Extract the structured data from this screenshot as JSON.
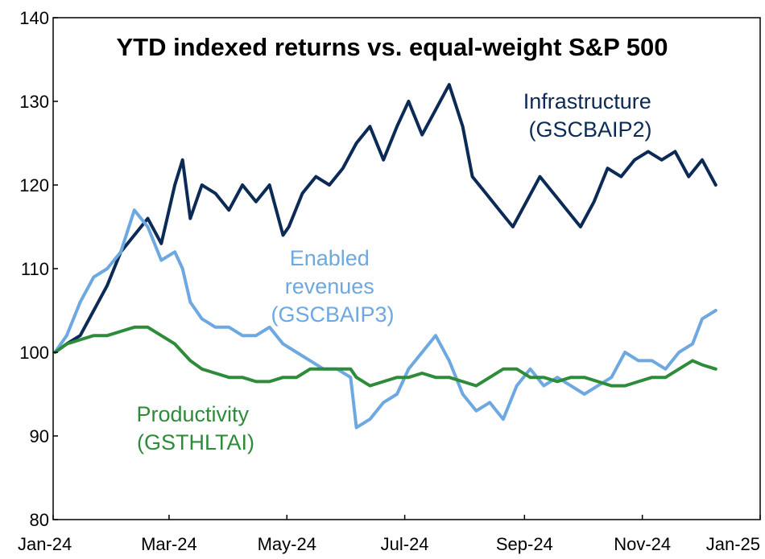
{
  "chart_data": {
    "type": "line",
    "title": "YTD indexed returns vs. equal-weight S&P 500",
    "xlabel": "",
    "ylabel": "",
    "xlim": [
      "2024-01-01",
      "2025-01-01"
    ],
    "ylim": [
      80,
      140
    ],
    "x_ticks": [
      "Jan-24",
      "Mar-24",
      "May-24",
      "Jul-24",
      "Sep-24",
      "Nov-24",
      "Jan-25"
    ],
    "y_ticks": [
      80,
      90,
      100,
      110,
      120,
      130,
      140
    ],
    "grid": false,
    "legend": "none",
    "series": [
      {
        "name": "Infrastructure (GSCBAIP2)",
        "label_lines": [
          "Infrastructure",
          "(GSCBAIP2)"
        ],
        "color": "#0b2a55",
        "points": [
          [
            "2024-01-02",
            100
          ],
          [
            "2024-01-08",
            101
          ],
          [
            "2024-01-15",
            102
          ],
          [
            "2024-01-22",
            105
          ],
          [
            "2024-01-29",
            108
          ],
          [
            "2024-02-05",
            112
          ],
          [
            "2024-02-12",
            114
          ],
          [
            "2024-02-19",
            116
          ],
          [
            "2024-02-26",
            113
          ],
          [
            "2024-03-04",
            120
          ],
          [
            "2024-03-08",
            123
          ],
          [
            "2024-03-12",
            116
          ],
          [
            "2024-03-18",
            120
          ],
          [
            "2024-03-25",
            119
          ],
          [
            "2024-04-01",
            117
          ],
          [
            "2024-04-08",
            120
          ],
          [
            "2024-04-15",
            118
          ],
          [
            "2024-04-22",
            120
          ],
          [
            "2024-04-29",
            114
          ],
          [
            "2024-05-02",
            115
          ],
          [
            "2024-05-09",
            119
          ],
          [
            "2024-05-16",
            121
          ],
          [
            "2024-05-23",
            120
          ],
          [
            "2024-05-30",
            122
          ],
          [
            "2024-06-06",
            125
          ],
          [
            "2024-06-13",
            127
          ],
          [
            "2024-06-20",
            123
          ],
          [
            "2024-06-27",
            127
          ],
          [
            "2024-07-03",
            130
          ],
          [
            "2024-07-10",
            126
          ],
          [
            "2024-07-17",
            129
          ],
          [
            "2024-07-24",
            132
          ],
          [
            "2024-07-31",
            127
          ],
          [
            "2024-08-05",
            121
          ],
          [
            "2024-08-12",
            119
          ],
          [
            "2024-08-19",
            117
          ],
          [
            "2024-08-26",
            115
          ],
          [
            "2024-09-02",
            118
          ],
          [
            "2024-09-09",
            121
          ],
          [
            "2024-09-16",
            119
          ],
          [
            "2024-09-23",
            117
          ],
          [
            "2024-09-30",
            115
          ],
          [
            "2024-10-07",
            118
          ],
          [
            "2024-10-14",
            122
          ],
          [
            "2024-10-21",
            121
          ],
          [
            "2024-10-28",
            123
          ],
          [
            "2024-11-04",
            124
          ],
          [
            "2024-11-11",
            123
          ],
          [
            "2024-11-18",
            124
          ],
          [
            "2024-11-25",
            121
          ],
          [
            "2024-12-02",
            123
          ],
          [
            "2024-12-09",
            120
          ]
        ]
      },
      {
        "name": "Enabled revenues (GSCBAIP3)",
        "label_lines": [
          "Enabled",
          "revenues",
          "(GSCBAIP3)"
        ],
        "color": "#6ea8e0",
        "points": [
          [
            "2024-01-02",
            100
          ],
          [
            "2024-01-08",
            102
          ],
          [
            "2024-01-15",
            106
          ],
          [
            "2024-01-22",
            109
          ],
          [
            "2024-01-29",
            110
          ],
          [
            "2024-02-05",
            112
          ],
          [
            "2024-02-12",
            117
          ],
          [
            "2024-02-19",
            115
          ],
          [
            "2024-02-26",
            111
          ],
          [
            "2024-03-04",
            112
          ],
          [
            "2024-03-08",
            110
          ],
          [
            "2024-03-12",
            106
          ],
          [
            "2024-03-18",
            104
          ],
          [
            "2024-03-25",
            103
          ],
          [
            "2024-04-01",
            103
          ],
          [
            "2024-04-08",
            102
          ],
          [
            "2024-04-15",
            102
          ],
          [
            "2024-04-22",
            103
          ],
          [
            "2024-04-29",
            101
          ],
          [
            "2024-05-06",
            100
          ],
          [
            "2024-05-13",
            99
          ],
          [
            "2024-05-20",
            98
          ],
          [
            "2024-05-27",
            98
          ],
          [
            "2024-06-03",
            97
          ],
          [
            "2024-06-06",
            91
          ],
          [
            "2024-06-13",
            92
          ],
          [
            "2024-06-20",
            94
          ],
          [
            "2024-06-27",
            95
          ],
          [
            "2024-07-03",
            98
          ],
          [
            "2024-07-10",
            100
          ],
          [
            "2024-07-17",
            102
          ],
          [
            "2024-07-24",
            99
          ],
          [
            "2024-07-31",
            95
          ],
          [
            "2024-08-07",
            93
          ],
          [
            "2024-08-14",
            94
          ],
          [
            "2024-08-21",
            92
          ],
          [
            "2024-08-28",
            96
          ],
          [
            "2024-09-04",
            98
          ],
          [
            "2024-09-11",
            96
          ],
          [
            "2024-09-18",
            97
          ],
          [
            "2024-09-25",
            96
          ],
          [
            "2024-10-02",
            95
          ],
          [
            "2024-10-09",
            96
          ],
          [
            "2024-10-16",
            97
          ],
          [
            "2024-10-23",
            100
          ],
          [
            "2024-10-30",
            99
          ],
          [
            "2024-11-06",
            99
          ],
          [
            "2024-11-13",
            98
          ],
          [
            "2024-11-20",
            100
          ],
          [
            "2024-11-27",
            101
          ],
          [
            "2024-12-02",
            104
          ],
          [
            "2024-12-09",
            105
          ]
        ]
      },
      {
        "name": "Productivity (GSTHLTAI)",
        "label_lines": [
          "Productivity",
          "(GSTHLTAI)"
        ],
        "color": "#2e8b3a",
        "points": [
          [
            "2024-01-02",
            100
          ],
          [
            "2024-01-08",
            101
          ],
          [
            "2024-01-15",
            101.5
          ],
          [
            "2024-01-22",
            102
          ],
          [
            "2024-01-29",
            102
          ],
          [
            "2024-02-05",
            102.5
          ],
          [
            "2024-02-12",
            103
          ],
          [
            "2024-02-19",
            103
          ],
          [
            "2024-02-26",
            102
          ],
          [
            "2024-03-04",
            101
          ],
          [
            "2024-03-08",
            100
          ],
          [
            "2024-03-12",
            99
          ],
          [
            "2024-03-18",
            98
          ],
          [
            "2024-03-25",
            97.5
          ],
          [
            "2024-04-01",
            97
          ],
          [
            "2024-04-08",
            97
          ],
          [
            "2024-04-15",
            96.5
          ],
          [
            "2024-04-22",
            96.5
          ],
          [
            "2024-04-29",
            97
          ],
          [
            "2024-05-06",
            97
          ],
          [
            "2024-05-13",
            98
          ],
          [
            "2024-05-20",
            98
          ],
          [
            "2024-05-27",
            98
          ],
          [
            "2024-06-03",
            98
          ],
          [
            "2024-06-06",
            97
          ],
          [
            "2024-06-13",
            96
          ],
          [
            "2024-06-20",
            96.5
          ],
          [
            "2024-06-27",
            97
          ],
          [
            "2024-07-03",
            97
          ],
          [
            "2024-07-10",
            97.5
          ],
          [
            "2024-07-17",
            97
          ],
          [
            "2024-07-24",
            97
          ],
          [
            "2024-07-31",
            96.5
          ],
          [
            "2024-08-07",
            96
          ],
          [
            "2024-08-14",
            97
          ],
          [
            "2024-08-21",
            98
          ],
          [
            "2024-08-28",
            98
          ],
          [
            "2024-09-04",
            97
          ],
          [
            "2024-09-11",
            97
          ],
          [
            "2024-09-18",
            96.5
          ],
          [
            "2024-09-25",
            97
          ],
          [
            "2024-10-02",
            97
          ],
          [
            "2024-10-09",
            96.5
          ],
          [
            "2024-10-16",
            96
          ],
          [
            "2024-10-23",
            96
          ],
          [
            "2024-10-30",
            96.5
          ],
          [
            "2024-11-06",
            97
          ],
          [
            "2024-11-13",
            97
          ],
          [
            "2024-11-20",
            98
          ],
          [
            "2024-11-27",
            99
          ],
          [
            "2024-12-02",
            98.5
          ],
          [
            "2024-12-09",
            98
          ]
        ]
      }
    ]
  }
}
